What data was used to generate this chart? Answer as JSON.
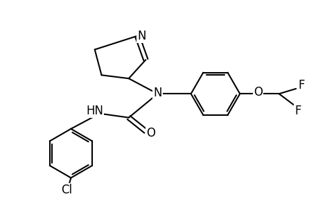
{
  "bg_color": "#ffffff",
  "bond_color": "#000000",
  "text_color": "#000000",
  "line_width": 1.5,
  "figsize": [
    4.6,
    3.0
  ],
  "dpi": 100,
  "xlim": [
    0,
    9.2
  ],
  "ylim": [
    0,
    6.0
  ]
}
